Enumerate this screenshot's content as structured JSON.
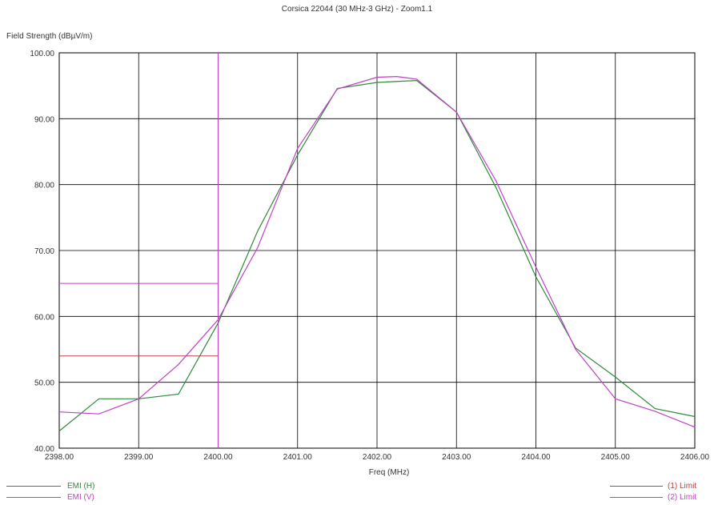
{
  "chart_data": {
    "type": "line",
    "title": "Corsica 22044 (30 MHz-3 GHz) - Zoom1.1",
    "xlabel": "Freq (MHz)",
    "ylabel": "Field Strength (dBµV/m)",
    "xlim": [
      2398,
      2406
    ],
    "ylim": [
      40,
      100
    ],
    "x_ticks": [
      2398,
      2399,
      2400,
      2401,
      2402,
      2403,
      2404,
      2405,
      2406
    ],
    "x_tick_labels": [
      "2398.00",
      "2399.00",
      "2400.00",
      "2401.00",
      "2402.00",
      "2403.00",
      "2404.00",
      "2405.00",
      "2406.00"
    ],
    "y_ticks": [
      40,
      50,
      60,
      70,
      80,
      90,
      100
    ],
    "y_tick_labels": [
      "40.00",
      "50.00",
      "60.00",
      "70.00",
      "80.00",
      "90.00",
      "100.00"
    ],
    "grid": true,
    "series": [
      {
        "name": "EMI (H)",
        "color": "#2e8b3a",
        "x": [
          2398.0,
          2398.5,
          2399.0,
          2399.5,
          2400.0,
          2400.5,
          2401.0,
          2401.5,
          2402.0,
          2402.5,
          2403.0,
          2403.5,
          2404.0,
          2404.5,
          2405.0,
          2405.5,
          2406.0
        ],
        "y": [
          42.6,
          47.5,
          47.5,
          48.2,
          59.0,
          73.0,
          84.5,
          94.6,
          95.5,
          95.8,
          91.0,
          79.5,
          66.0,
          55.2,
          50.8,
          46.0,
          44.8
        ]
      },
      {
        "name": "EMI (V)",
        "color": "#c040c8",
        "x": [
          2398.0,
          2398.5,
          2399.0,
          2399.5,
          2400.0,
          2400.5,
          2401.0,
          2401.5,
          2402.0,
          2402.25,
          2402.5,
          2403.0,
          2403.5,
          2404.0,
          2404.5,
          2405.0,
          2405.5,
          2406.0
        ],
        "y": [
          45.5,
          45.2,
          47.5,
          52.7,
          59.5,
          70.5,
          85.5,
          94.5,
          96.3,
          96.4,
          96.0,
          91.0,
          80.5,
          67.5,
          55.0,
          47.5,
          45.6,
          43.2
        ]
      }
    ],
    "limits": [
      {
        "name": "(1) Limit",
        "color": "#b84040",
        "x": [
          2398.0,
          2400.0
        ],
        "y": 54.0
      },
      {
        "name": "(2) Limit",
        "color": "#c040c8",
        "x": [
          2398.0,
          2400.0
        ],
        "y": 65.0
      }
    ],
    "marker": {
      "x": 2400.0,
      "color": "#c040c8"
    },
    "legend_placement": "bottom"
  }
}
